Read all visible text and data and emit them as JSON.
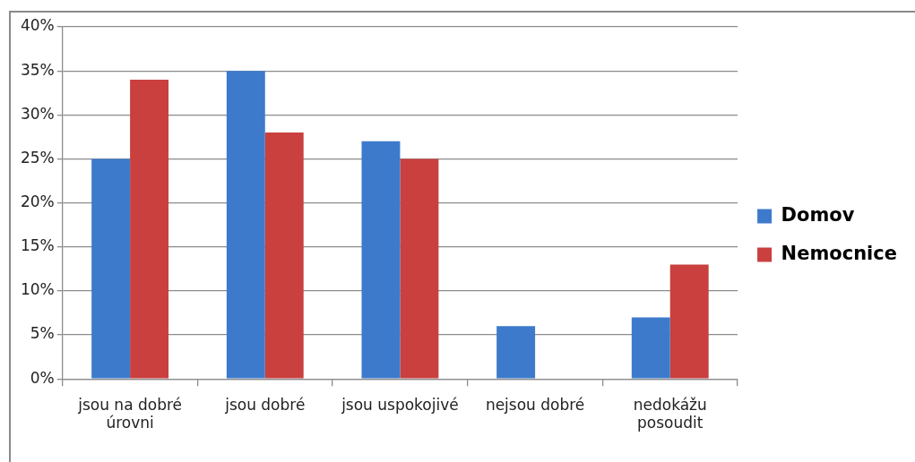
{
  "chart_data": {
    "type": "bar",
    "categories": [
      "jsou na dobré úrovni",
      "jsou dobré",
      "jsou uspokojivé",
      "nejsou dobré",
      "nedokážu posoudit"
    ],
    "series": [
      {
        "name": "Domov",
        "color": "#3d7acb",
        "values": [
          25,
          35,
          27,
          6,
          7
        ]
      },
      {
        "name": "Nemocnice",
        "color": "#c9403e",
        "values": [
          34,
          28,
          25,
          0,
          13
        ]
      }
    ],
    "ylim": [
      0,
      40
    ],
    "yticks": [
      {
        "value": 0,
        "label": "0%"
      },
      {
        "value": 5,
        "label": "5%"
      },
      {
        "value": 10,
        "label": "10%"
      },
      {
        "value": 15,
        "label": "15%"
      },
      {
        "value": 20,
        "label": "20%"
      },
      {
        "value": 25,
        "label": "25%"
      },
      {
        "value": 30,
        "label": "30%"
      },
      {
        "value": 35,
        "label": "35%"
      },
      {
        "value": 40,
        "label": "40%"
      }
    ],
    "grid": "y",
    "legend": "right"
  }
}
